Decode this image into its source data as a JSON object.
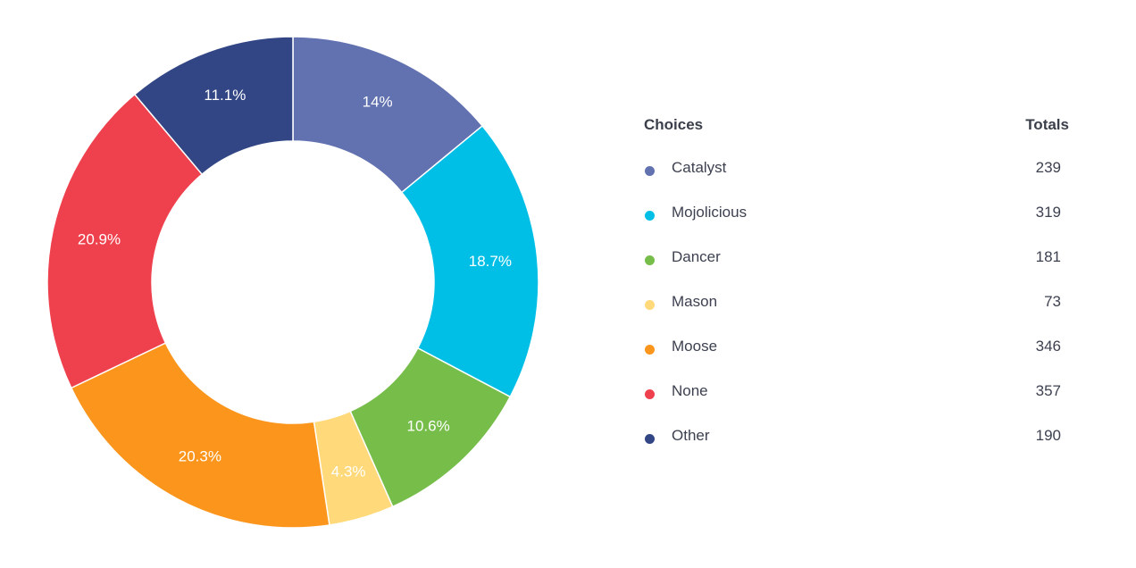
{
  "chart_data": {
    "type": "pie",
    "donut": true,
    "legend_placement": "right",
    "legend_headers": {
      "choices": "Choices",
      "totals": "Totals"
    },
    "slices": [
      {
        "name": "Catalyst",
        "value": 239,
        "percent_label": "14%",
        "color": "#6272b0"
      },
      {
        "name": "Mojolicious",
        "value": 319,
        "percent_label": "18.7%",
        "color": "#00bfe6"
      },
      {
        "name": "Dancer",
        "value": 181,
        "percent_label": "10.6%",
        "color": "#76bd4a"
      },
      {
        "name": "Mason",
        "value": 73,
        "percent_label": "4.3%",
        "color": "#ffd97a"
      },
      {
        "name": "Moose",
        "value": 346,
        "percent_label": "20.3%",
        "color": "#fb951c"
      },
      {
        "name": "None",
        "value": 357,
        "percent_label": "20.9%",
        "color": "#ef404d"
      },
      {
        "name": "Other",
        "value": 190,
        "percent_label": "11.1%",
        "color": "#324686"
      }
    ]
  }
}
